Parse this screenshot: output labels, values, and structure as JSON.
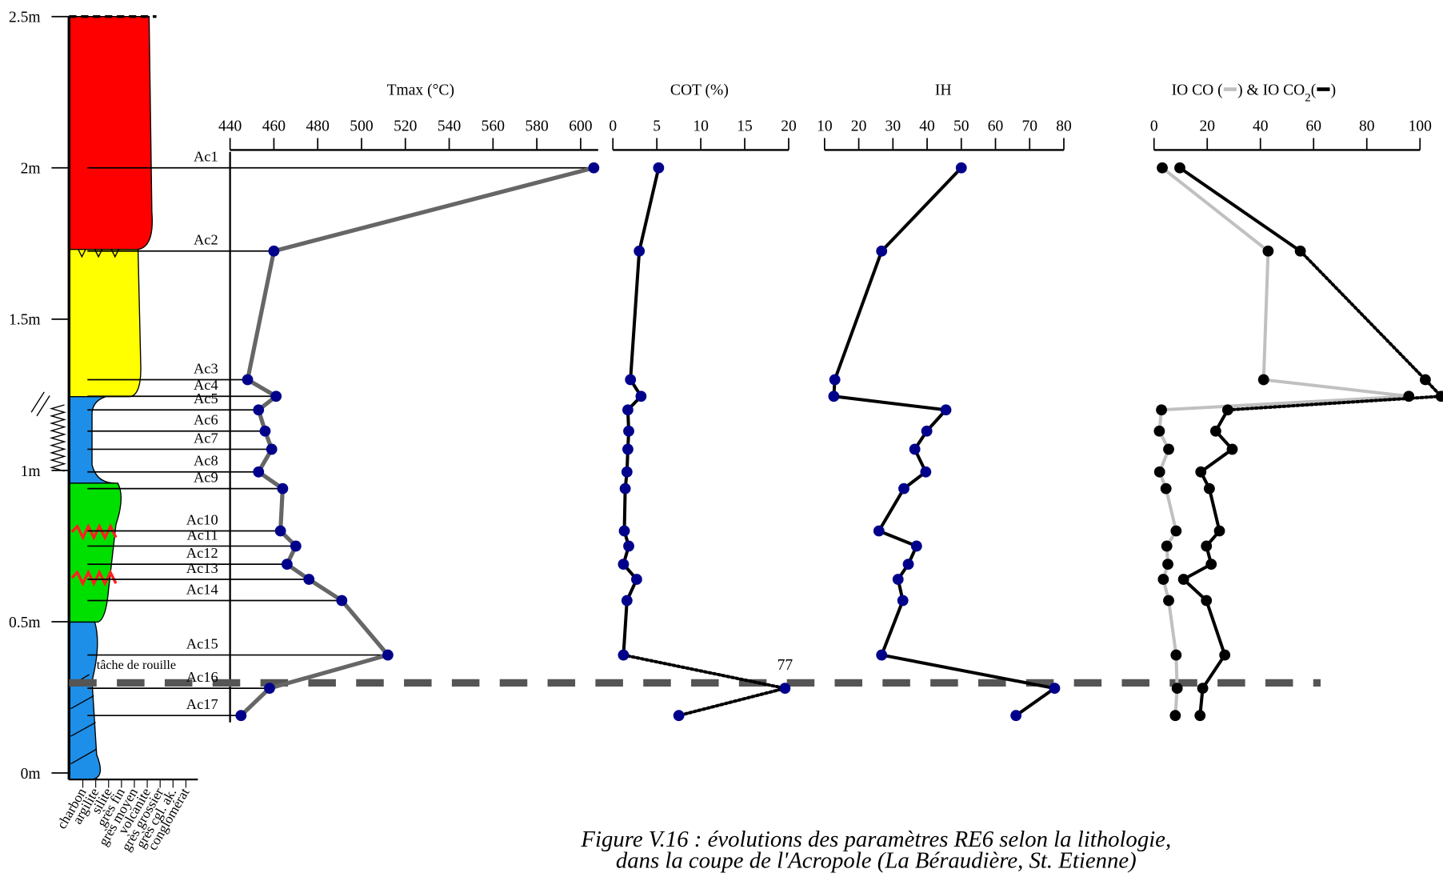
{
  "depth_axis": {
    "ylim": [
      0,
      2.5
    ],
    "yticks": [
      {
        "value": 0,
        "label": "0m"
      },
      {
        "value": 0.5,
        "label": "0.5m"
      },
      {
        "value": 1,
        "label": "1m"
      },
      {
        "value": 1.5,
        "label": "1.5m"
      },
      {
        "value": 2,
        "label": "2m"
      },
      {
        "value": 2.5,
        "label": "2.5m"
      }
    ]
  },
  "samples": {
    "names": [
      "Ac1",
      "Ac2",
      "Ac3",
      "Ac4",
      "Ac5",
      "Ac6",
      "Ac7",
      "Ac8",
      "Ac9",
      "Ac10",
      "Ac11",
      "Ac12",
      "Ac13",
      "Ac14",
      "Ac15",
      "Ac16",
      "Ac17"
    ],
    "depths": [
      2.0,
      1.725,
      1.3,
      1.245,
      1.2,
      1.13,
      1.07,
      0.995,
      0.94,
      0.8,
      0.75,
      0.69,
      0.64,
      0.57,
      0.39,
      0.28,
      0.19
    ]
  },
  "lithology": {
    "grain_sizes": [
      "charbon",
      "argilite",
      "silite",
      "grès fin",
      "grès moyen",
      "volcanite",
      "grès grossier",
      "grès cgl. ak.",
      "conglomérat"
    ],
    "annotation": "tâche de rouille"
  },
  "chart_data": [
    {
      "type": "line",
      "title": "Tmax (°C)",
      "xlim": [
        440,
        608
      ],
      "xticks": [
        440,
        460,
        480,
        500,
        520,
        540,
        560,
        580,
        600
      ],
      "series": [
        {
          "name": "Tmax",
          "color": "#666666",
          "marker_color": "#00008b",
          "values": [
            606,
            460,
            448,
            461,
            453,
            456,
            459,
            453,
            464,
            463,
            470,
            466,
            476,
            491,
            512,
            458,
            445
          ]
        }
      ]
    },
    {
      "type": "line",
      "title": "COT (%)",
      "xlim": [
        0,
        20
      ],
      "xticks": [
        0,
        5,
        10,
        15,
        20
      ],
      "series": [
        {
          "name": "COT",
          "color": "#000000",
          "marker_color": "#00008b",
          "values": [
            5.2,
            3.0,
            2.0,
            3.2,
            1.7,
            1.8,
            1.7,
            1.6,
            1.4,
            1.3,
            1.8,
            1.2,
            2.7,
            1.6,
            1.2,
            77,
            7.5
          ],
          "value_labels": [
            null,
            null,
            null,
            null,
            null,
            null,
            null,
            null,
            null,
            null,
            null,
            null,
            null,
            null,
            null,
            "77",
            null
          ]
        }
      ]
    },
    {
      "type": "line",
      "title": "IH",
      "xlim": [
        10,
        80
      ],
      "xticks": [
        10,
        20,
        30,
        40,
        50,
        60,
        70,
        80
      ],
      "series": [
        {
          "name": "IH",
          "color": "#000000",
          "marker_color": "#00008b",
          "values": [
            50,
            26.7,
            13,
            12.7,
            45.5,
            39.9,
            36.4,
            39.6,
            33.2,
            25.9,
            36.9,
            34.5,
            31.5,
            32.9,
            26.7,
            77.3,
            66
          ]
        }
      ]
    },
    {
      "type": "line",
      "title_parts": [
        "IO CO (",
        ") & IO CO",
        "2",
        "(",
        ")"
      ],
      "xlim": [
        0,
        100
      ],
      "xticks": [
        0,
        20,
        40,
        60,
        80,
        100
      ],
      "series": [
        {
          "name": "IO CO",
          "color": "#c0c0c0",
          "marker_color": "#000000",
          "values": [
            3.1,
            42.9,
            41.2,
            95.8,
            2.8,
            2,
            5.5,
            2.1,
            4.5,
            8.3,
            4.8,
            5.2,
            3.5,
            5.5,
            8.3,
            8.7,
            8
          ]
        },
        {
          "name": "IO CO2",
          "color": "#000000",
          "marker_color": "#000000",
          "values": [
            9.7,
            55,
            102,
            110,
            27.7,
            23.2,
            29.4,
            17.6,
            20.8,
            24.6,
            19.7,
            21.5,
            11.1,
            19.7,
            26.6,
            18.3,
            17.3
          ]
        }
      ]
    }
  ],
  "caption": [
    "Figure V.16 : évolutions des paramètres RE6 selon la lithologie,",
    "dans la coupe de l'Acropole (La Béraudière, St. Etienne)"
  ]
}
